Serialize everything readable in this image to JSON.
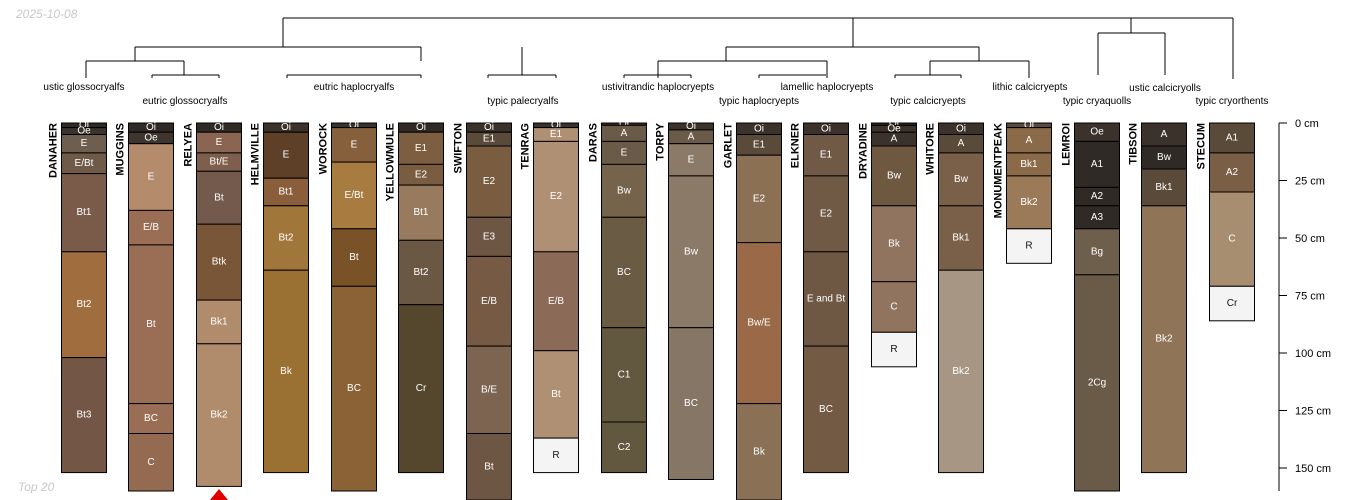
{
  "date": "2025-10-08",
  "footer": "Top 20",
  "depth_axis": {
    "unit": "cm",
    "max": 160,
    "ticks": [
      0,
      25,
      50,
      75,
      100,
      125,
      150
    ],
    "tick_labels": [
      "0 cm",
      "25 cm",
      "50 cm",
      "75 cm",
      "100 cm",
      "125 cm",
      "150 cm"
    ]
  },
  "taxa": [
    "ustic glossocryalfs",
    "eutric glossocryalfs",
    "eutric haplocryalfs",
    "typic palecryalfs",
    "ustivitrandic haplocryepts",
    "typic haplocryepts",
    "lamellic haplocryepts",
    "typic calcicryepts",
    "lithic calcicryepts",
    "typic cryaquolls",
    "ustic calcicryolls",
    "typic cryorthents"
  ],
  "profiles": [
    {
      "name": "DANAHER",
      "horizons": [
        {
          "name": "Oi",
          "top": 0,
          "bottom": 2,
          "color": "#2f2a26"
        },
        {
          "name": "Oe",
          "top": 2,
          "bottom": 5,
          "color": "#3a332c"
        },
        {
          "name": "E",
          "top": 5,
          "bottom": 13,
          "color": "#6e5e50"
        },
        {
          "name": "E/Bt",
          "top": 13,
          "bottom": 22,
          "color": "#6f5a47"
        },
        {
          "name": "Bt1",
          "top": 22,
          "bottom": 56,
          "color": "#7a5a48"
        },
        {
          "name": "Bt2",
          "top": 56,
          "bottom": 102,
          "color": "#a06e3e"
        },
        {
          "name": "Bt3",
          "top": 102,
          "bottom": 152,
          "color": "#735645"
        }
      ]
    },
    {
      "name": "MUGGINS",
      "horizons": [
        {
          "name": "Oi",
          "top": 0,
          "bottom": 4,
          "color": "#2f2a26"
        },
        {
          "name": "Oe",
          "top": 4,
          "bottom": 9,
          "color": "#3d352e"
        },
        {
          "name": "E",
          "top": 9,
          "bottom": 38,
          "color": "#b48c6c"
        },
        {
          "name": "E/B",
          "top": 38,
          "bottom": 53,
          "color": "#9a6e55"
        },
        {
          "name": "Bt",
          "top": 53,
          "bottom": 122,
          "color": "#9a6e55"
        },
        {
          "name": "BC",
          "top": 122,
          "bottom": 135,
          "color": "#9a6e55"
        },
        {
          "name": "C",
          "top": 135,
          "bottom": 160,
          "color": "#946a50"
        }
      ]
    },
    {
      "name": "RELYEA",
      "horizons": [
        {
          "name": "Oi",
          "top": 0,
          "bottom": 4,
          "color": "#2f2a26"
        },
        {
          "name": "E",
          "top": 4,
          "bottom": 13,
          "color": "#8a6552"
        },
        {
          "name": "Bt/E",
          "top": 13,
          "bottom": 21,
          "color": "#7e5e4c"
        },
        {
          "name": "Bt",
          "top": 21,
          "bottom": 44,
          "color": "#735a4c"
        },
        {
          "name": "Btk",
          "top": 44,
          "bottom": 77,
          "color": "#7a5638"
        },
        {
          "name": "Bk1",
          "top": 77,
          "bottom": 96,
          "color": "#b08c6c"
        },
        {
          "name": "Bk2",
          "top": 96,
          "bottom": 158,
          "color": "#b08c6c"
        }
      ]
    },
    {
      "name": "HELMVILLE",
      "horizons": [
        {
          "name": "Oi",
          "top": 0,
          "bottom": 4,
          "color": "#3b322b"
        },
        {
          "name": "E",
          "top": 4,
          "bottom": 24,
          "color": "#5e3f28"
        },
        {
          "name": "Bt1",
          "top": 24,
          "bottom": 36,
          "color": "#8a5e3b"
        },
        {
          "name": "Bt2",
          "top": 36,
          "bottom": 64,
          "color": "#a0763a"
        },
        {
          "name": "Bk",
          "top": 64,
          "bottom": 152,
          "color": "#9a7033"
        }
      ]
    },
    {
      "name": "WOROCK",
      "horizons": [
        {
          "name": "Oi",
          "top": 0,
          "bottom": 2,
          "color": "#3b322b"
        },
        {
          "name": "E",
          "top": 2,
          "bottom": 17,
          "color": "#86603c"
        },
        {
          "name": "E/Bt",
          "top": 17,
          "bottom": 46,
          "color": "#a87c40"
        },
        {
          "name": "Bt",
          "top": 46,
          "bottom": 71,
          "color": "#7a5228"
        },
        {
          "name": "BC",
          "top": 71,
          "bottom": 160,
          "color": "#8a6236"
        }
      ]
    },
    {
      "name": "YELLOWMULE",
      "horizons": [
        {
          "name": "Oi",
          "top": 0,
          "bottom": 4,
          "color": "#2f2a26"
        },
        {
          "name": "E1",
          "top": 4,
          "bottom": 18,
          "color": "#7e5e40"
        },
        {
          "name": "E2",
          "top": 18,
          "bottom": 27,
          "color": "#7a5c40"
        },
        {
          "name": "Bt1",
          "top": 27,
          "bottom": 51,
          "color": "#987a5e"
        },
        {
          "name": "Bt2",
          "top": 51,
          "bottom": 79,
          "color": "#6a5844"
        },
        {
          "name": "Cr",
          "top": 79,
          "bottom": 152,
          "color": "#55462e"
        }
      ]
    },
    {
      "name": "SWIFTON",
      "horizons": [
        {
          "name": "Oi",
          "top": 0,
          "bottom": 4,
          "color": "#3b322b"
        },
        {
          "name": "E1",
          "top": 4,
          "bottom": 10,
          "color": "#5a4a3a"
        },
        {
          "name": "E2",
          "top": 10,
          "bottom": 41,
          "color": "#7a5c40"
        },
        {
          "name": "E3",
          "top": 41,
          "bottom": 58,
          "color": "#6e5644"
        },
        {
          "name": "E/B",
          "top": 58,
          "bottom": 97,
          "color": "#775a43"
        },
        {
          "name": "B/E",
          "top": 97,
          "bottom": 135,
          "color": "#7c6450"
        },
        {
          "name": "Bt",
          "top": 135,
          "bottom": 165,
          "color": "#6e5644"
        }
      ]
    },
    {
      "name": "TENRAG",
      "horizons": [
        {
          "name": "Oi",
          "top": 0,
          "bottom": 2,
          "color": "#3b322b"
        },
        {
          "name": "E1",
          "top": 2,
          "bottom": 8,
          "color": "#b09074"
        },
        {
          "name": "E2",
          "top": 8,
          "bottom": 56,
          "color": "#b09074"
        },
        {
          "name": "E/B",
          "top": 56,
          "bottom": 99,
          "color": "#8c6a58"
        },
        {
          "name": "Bt",
          "top": 99,
          "bottom": 137,
          "color": "#b09074"
        },
        {
          "name": "R",
          "top": 137,
          "bottom": 152,
          "color": "#f4f4f4"
        }
      ]
    },
    {
      "name": "DARAS",
      "horizons": [
        {
          "name": "Oi",
          "top": 0,
          "bottom": 1,
          "color": "#3b322b"
        },
        {
          "name": "A",
          "top": 1,
          "bottom": 8,
          "color": "#6a5a48"
        },
        {
          "name": "E",
          "top": 8,
          "bottom": 18,
          "color": "#6a5a48"
        },
        {
          "name": "Bw",
          "top": 18,
          "bottom": 41,
          "color": "#75634c"
        },
        {
          "name": "BC",
          "top": 41,
          "bottom": 89,
          "color": "#6a5c44"
        },
        {
          "name": "C1",
          "top": 89,
          "bottom": 130,
          "color": "#625840"
        },
        {
          "name": "C2",
          "top": 130,
          "bottom": 152,
          "color": "#625840"
        }
      ]
    },
    {
      "name": "TORPY",
      "horizons": [
        {
          "name": "Oi",
          "top": 0,
          "bottom": 3,
          "color": "#3b322b"
        },
        {
          "name": "A",
          "top": 3,
          "bottom": 9,
          "color": "#6a5a48"
        },
        {
          "name": "E",
          "top": 9,
          "bottom": 23,
          "color": "#8c7a68"
        },
        {
          "name": "Bw",
          "top": 23,
          "bottom": 89,
          "color": "#8c7a68"
        },
        {
          "name": "BC",
          "top": 89,
          "bottom": 155,
          "color": "#857666"
        }
      ]
    },
    {
      "name": "GARLET",
      "horizons": [
        {
          "name": "Oi",
          "top": 0,
          "bottom": 5,
          "color": "#3b322b"
        },
        {
          "name": "E1",
          "top": 5,
          "bottom": 14,
          "color": "#5a4a3a"
        },
        {
          "name": "E2",
          "top": 14,
          "bottom": 52,
          "color": "#8c7054"
        },
        {
          "name": "Bw/E",
          "top": 52,
          "bottom": 122,
          "color": "#9a6a48"
        },
        {
          "name": "Bk",
          "top": 122,
          "bottom": 165,
          "color": "#8a7054"
        }
      ]
    },
    {
      "name": "ELKNER",
      "horizons": [
        {
          "name": "Oi",
          "top": 0,
          "bottom": 5,
          "color": "#3b322b"
        },
        {
          "name": "E1",
          "top": 5,
          "bottom": 23,
          "color": "#705a46"
        },
        {
          "name": "E2",
          "top": 23,
          "bottom": 56,
          "color": "#705a46"
        },
        {
          "name": "E and Bt",
          "top": 56,
          "bottom": 97,
          "color": "#6e5844"
        },
        {
          "name": "BC",
          "top": 97,
          "bottom": 152,
          "color": "#735a44"
        }
      ]
    },
    {
      "name": "DRYADINE",
      "horizons": [
        {
          "name": "Oi",
          "top": 0,
          "bottom": 1,
          "color": "#2f2a26"
        },
        {
          "name": "Oe",
          "top": 1,
          "bottom": 4,
          "color": "#3b322b"
        },
        {
          "name": "A",
          "top": 4,
          "bottom": 10,
          "color": "#3b322b"
        },
        {
          "name": "Bw",
          "top": 10,
          "bottom": 36,
          "color": "#6e5840"
        },
        {
          "name": "Bk",
          "top": 36,
          "bottom": 69,
          "color": "#907460"
        },
        {
          "name": "C",
          "top": 69,
          "bottom": 91,
          "color": "#907460"
        },
        {
          "name": "R",
          "top": 91,
          "bottom": 106,
          "color": "#f4f4f4"
        }
      ]
    },
    {
      "name": "WHITORE",
      "horizons": [
        {
          "name": "Oi",
          "top": 0,
          "bottom": 5,
          "color": "#3b322b"
        },
        {
          "name": "A",
          "top": 5,
          "bottom": 13,
          "color": "#5a4a3a"
        },
        {
          "name": "Bw",
          "top": 13,
          "bottom": 36,
          "color": "#7a6048"
        },
        {
          "name": "Bk1",
          "top": 36,
          "bottom": 64,
          "color": "#7a6048"
        },
        {
          "name": "Bk2",
          "top": 64,
          "bottom": 152,
          "color": "#a89684"
        }
      ]
    },
    {
      "name": "MONUMENTPEAK",
      "horizons": [
        {
          "name": "Oi",
          "top": 0,
          "bottom": 2,
          "color": "#5a4a3a"
        },
        {
          "name": "A",
          "top": 2,
          "bottom": 13,
          "color": "#8a6a48"
        },
        {
          "name": "Bk1",
          "top": 13,
          "bottom": 23,
          "color": "#8a6a48"
        },
        {
          "name": "Bk2",
          "top": 23,
          "bottom": 46,
          "color": "#9a7a58"
        },
        {
          "name": "R",
          "top": 46,
          "bottom": 61,
          "color": "#f4f4f4"
        }
      ]
    },
    {
      "name": "LEMROI",
      "horizons": [
        {
          "name": "Oe",
          "top": 0,
          "bottom": 8,
          "color": "#3b322b"
        },
        {
          "name": "A1",
          "top": 8,
          "bottom": 28,
          "color": "#2f2a26"
        },
        {
          "name": "A2",
          "top": 28,
          "bottom": 36,
          "color": "#2f2a26"
        },
        {
          "name": "A3",
          "top": 36,
          "bottom": 46,
          "color": "#2f2a26"
        },
        {
          "name": "Bg",
          "top": 46,
          "bottom": 66,
          "color": "#6e5e4c"
        },
        {
          "name": "2Cg",
          "top": 66,
          "bottom": 160,
          "color": "#6a5a48"
        }
      ]
    },
    {
      "name": "TIBSON",
      "horizons": [
        {
          "name": "A",
          "top": 0,
          "bottom": 10,
          "color": "#3b322b"
        },
        {
          "name": "Bw",
          "top": 10,
          "bottom": 20,
          "color": "#2f2a26"
        },
        {
          "name": "Bk1",
          "top": 20,
          "bottom": 36,
          "color": "#5a4a3a"
        },
        {
          "name": "Bk2",
          "top": 36,
          "bottom": 152,
          "color": "#907458"
        }
      ]
    },
    {
      "name": "STECUM",
      "horizons": [
        {
          "name": "A1",
          "top": 0,
          "bottom": 13,
          "color": "#5a4a3a"
        },
        {
          "name": "A2",
          "top": 13,
          "bottom": 30,
          "color": "#7a5e46"
        },
        {
          "name": "C",
          "top": 30,
          "bottom": 71,
          "color": "#a88e70"
        },
        {
          "name": "Cr",
          "top": 71,
          "bottom": 86,
          "color": "#f4f4f4"
        }
      ]
    }
  ],
  "truncated_profile": "RELYEA",
  "marker_color": "#e00000"
}
